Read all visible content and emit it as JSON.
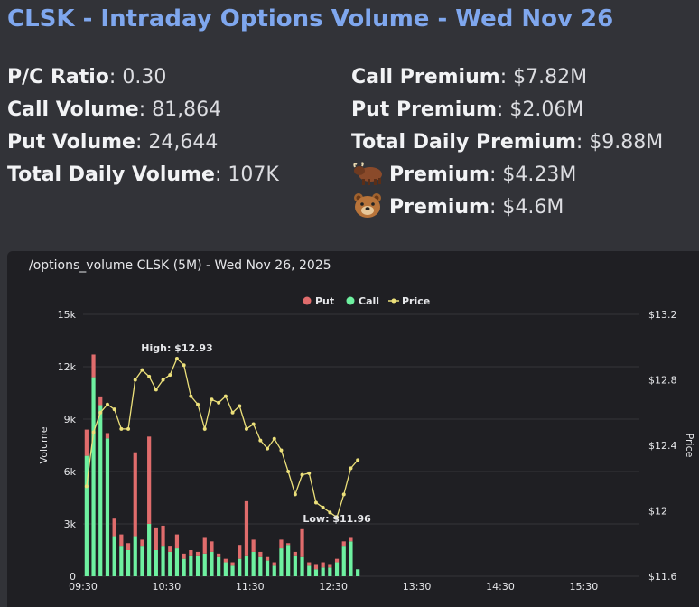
{
  "header": {
    "title": "CLSK - Intraday Options Volume - Wed Nov 26"
  },
  "stats_left": [
    {
      "label": "P/C Ratio",
      "value": "0.30"
    },
    {
      "label": "Call Volume",
      "value": "81,864"
    },
    {
      "label": "Put Volume",
      "value": "24,644"
    },
    {
      "label": "Total Daily Volume",
      "value": "107K"
    }
  ],
  "stats_right": [
    {
      "label": "Call Premium",
      "value": "$7.82M"
    },
    {
      "label": "Put Premium",
      "value": "$2.06M"
    },
    {
      "label": "Total Daily Premium",
      "value": "$9.88M"
    },
    {
      "label": "Premium",
      "value": "$4.23M",
      "icon": "bull-icon"
    },
    {
      "label": "Premium",
      "value": "$4.6M",
      "icon": "bear-icon"
    }
  ],
  "chart_data": {
    "type": "bar",
    "title": "/options_volume CLSK (5M) - Wed Nov 26, 2025",
    "legend": [
      "Put",
      "Call",
      "Price"
    ],
    "legend_placement": "top-center",
    "colors": {
      "put": "#e06c6c",
      "call": "#6ef0a0",
      "price": "#ece07a"
    },
    "ylabel": "Volume",
    "y2label": "Price",
    "ylim": [
      0,
      15000
    ],
    "y2lim": [
      11.6,
      13.2
    ],
    "y_ticks": [
      "0",
      "3k",
      "6k",
      "9k",
      "12k",
      "15k"
    ],
    "y2_ticks": [
      "$11.6",
      "$12",
      "$12.4",
      "$12.8",
      "$13.2"
    ],
    "x_ticks": [
      "09:30",
      "10:30",
      "11:30",
      "12:30",
      "13:30",
      "14:30",
      "15:30"
    ],
    "x_minutes_range": [
      565,
      965
    ],
    "annotations": [
      {
        "text": "High: $12.93",
        "kind": "high"
      },
      {
        "text": "Low: $11.96",
        "kind": "low"
      }
    ],
    "bars": [
      {
        "call": 6900,
        "put": 1500
      },
      {
        "call": 11400,
        "put": 1300
      },
      {
        "call": 9800,
        "put": 500
      },
      {
        "call": 7900,
        "put": 300
      },
      {
        "call": 2300,
        "put": 1000
      },
      {
        "call": 1700,
        "put": 700
      },
      {
        "call": 1500,
        "put": 400
      },
      {
        "call": 2300,
        "put": 4800
      },
      {
        "call": 1700,
        "put": 400
      },
      {
        "call": 3000,
        "put": 5000
      },
      {
        "call": 1500,
        "put": 1300
      },
      {
        "call": 1700,
        "put": 1200
      },
      {
        "call": 1400,
        "put": 300
      },
      {
        "call": 1600,
        "put": 800
      },
      {
        "call": 1000,
        "put": 300
      },
      {
        "call": 1200,
        "put": 300
      },
      {
        "call": 1200,
        "put": 200
      },
      {
        "call": 1300,
        "put": 900
      },
      {
        "call": 1400,
        "put": 600
      },
      {
        "call": 1100,
        "put": 200
      },
      {
        "call": 800,
        "put": 200
      },
      {
        "call": 600,
        "put": 200
      },
      {
        "call": 1000,
        "put": 800
      },
      {
        "call": 1200,
        "put": 3100
      },
      {
        "call": 1400,
        "put": 700
      },
      {
        "call": 1100,
        "put": 300
      },
      {
        "call": 900,
        "put": 200
      },
      {
        "call": 600,
        "put": 200
      },
      {
        "call": 1600,
        "put": 500
      },
      {
        "call": 1800,
        "put": 100
      },
      {
        "call": 1200,
        "put": 200
      },
      {
        "call": 1100,
        "put": 1600
      },
      {
        "call": 600,
        "put": 200
      },
      {
        "call": 400,
        "put": 300
      },
      {
        "call": 500,
        "put": 300
      },
      {
        "call": 500,
        "put": 200
      },
      {
        "call": 800,
        "put": 200
      },
      {
        "call": 1700,
        "put": 300
      },
      {
        "call": 2000,
        "put": 200
      },
      {
        "call": 400,
        "put": 0
      }
    ],
    "price": [
      12.15,
      12.48,
      12.6,
      12.65,
      12.62,
      12.5,
      12.5,
      12.8,
      12.86,
      12.82,
      12.74,
      12.8,
      12.83,
      12.93,
      12.89,
      12.7,
      12.65,
      12.5,
      12.68,
      12.66,
      12.7,
      12.6,
      12.64,
      12.5,
      12.53,
      12.43,
      12.38,
      12.44,
      12.37,
      12.24,
      12.1,
      12.22,
      12.23,
      12.05,
      12.02,
      11.99,
      11.96,
      12.1,
      12.26,
      12.31
    ]
  }
}
